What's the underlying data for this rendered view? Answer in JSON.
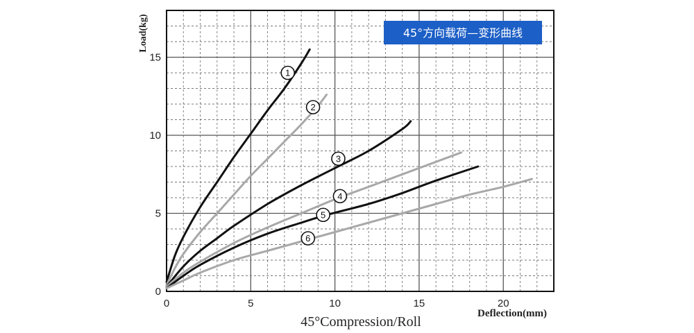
{
  "chart_data": {
    "type": "line",
    "title": "45°方向载荷—变形曲线",
    "xlabel": "45°Compression/Roll",
    "xlabel_right": "Deflection(mm)",
    "ylabel": "Load(kg)",
    "xlim": [
      0,
      23
    ],
    "ylim": [
      0,
      18
    ],
    "x_ticks": [
      "0",
      "5",
      "10",
      "15",
      "20"
    ],
    "y_ticks": [
      "0",
      "5",
      "10",
      "15"
    ],
    "grid": true,
    "colors": {
      "dark": "#111111",
      "light": "#a8a8a8",
      "title_bg": "#1c5fc6"
    },
    "series": [
      {
        "name": "1",
        "color": "dark",
        "x": [
          0,
          0.5,
          1,
          2,
          3,
          4,
          5,
          6,
          7,
          8,
          8.5
        ],
        "y": [
          0.6,
          2.3,
          3.5,
          5.4,
          7.0,
          8.6,
          10.1,
          11.6,
          13.0,
          14.6,
          15.5
        ]
      },
      {
        "name": "2",
        "color": "light",
        "x": [
          0,
          0.5,
          1,
          2,
          3,
          4,
          5,
          6,
          7,
          8,
          9,
          9.5
        ],
        "y": [
          0.4,
          1.5,
          2.4,
          3.8,
          5.0,
          6.2,
          7.4,
          8.5,
          9.6,
          10.7,
          11.9,
          12.6
        ]
      },
      {
        "name": "3",
        "color": "dark",
        "x": [
          0,
          1,
          2,
          3,
          4,
          6,
          8,
          10,
          12,
          14,
          14.5
        ],
        "y": [
          0.3,
          1.6,
          2.6,
          3.4,
          4.2,
          5.6,
          6.8,
          7.9,
          9.0,
          10.4,
          10.9
        ]
      },
      {
        "name": "4",
        "color": "light",
        "x": [
          0,
          1,
          2,
          4,
          6,
          8,
          10,
          12,
          14,
          16,
          17.5
        ],
        "y": [
          0.3,
          1.2,
          1.9,
          3.1,
          4.1,
          5.0,
          5.9,
          6.7,
          7.5,
          8.3,
          8.9
        ]
      },
      {
        "name": "5",
        "color": "dark",
        "x": [
          0,
          1,
          2,
          4,
          6,
          8,
          9.5,
          12,
          14,
          16,
          18.5
        ],
        "y": [
          0.2,
          1.0,
          1.7,
          2.8,
          3.7,
          4.4,
          4.9,
          5.6,
          6.3,
          7.1,
          8.0
        ]
      },
      {
        "name": "6",
        "color": "light",
        "x": [
          0,
          1,
          2,
          4,
          6,
          8,
          10,
          12,
          14,
          16,
          18,
          20,
          21.7
        ],
        "y": [
          0.2,
          0.7,
          1.2,
          2.0,
          2.6,
          3.2,
          3.8,
          4.4,
          5.0,
          5.6,
          6.2,
          6.7,
          7.2
        ]
      }
    ],
    "markers": [
      {
        "label": "1",
        "x": 7.2,
        "y": 14.0
      },
      {
        "label": "2",
        "x": 8.7,
        "y": 11.8
      },
      {
        "label": "3",
        "x": 10.2,
        "y": 8.5
      },
      {
        "label": "4",
        "x": 10.3,
        "y": 6.1
      },
      {
        "label": "5",
        "x": 9.3,
        "y": 4.9
      },
      {
        "label": "6",
        "x": 8.4,
        "y": 3.4
      }
    ]
  }
}
